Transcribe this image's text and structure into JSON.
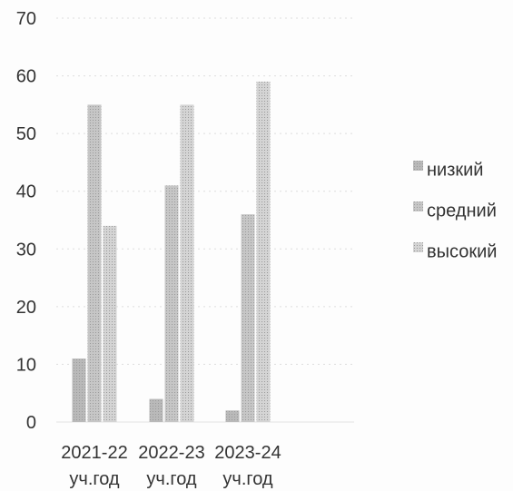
{
  "chart_data": {
    "type": "bar",
    "title": "",
    "categories": [
      [
        "2021-22",
        "уч.год"
      ],
      [
        "2022-23",
        "уч.год"
      ],
      [
        "2023-24",
        "уч.год"
      ]
    ],
    "series": [
      {
        "name": "низкий",
        "values": [
          11,
          4,
          2
        ]
      },
      {
        "name": "средний",
        "values": [
          55,
          41,
          36
        ]
      },
      {
        "name": "высокий",
        "values": [
          34,
          55,
          59
        ]
      }
    ],
    "yticks": [
      0,
      10,
      20,
      30,
      40,
      50,
      60,
      70
    ],
    "ylim": [
      0,
      70
    ],
    "xlabel": "",
    "ylabel": "",
    "legend_position": "right",
    "grid": true,
    "colors": {
      "низкий": "#b9b9b9",
      "средний": "#c6c6c6",
      "высокий": "#d4d4d4"
    }
  }
}
